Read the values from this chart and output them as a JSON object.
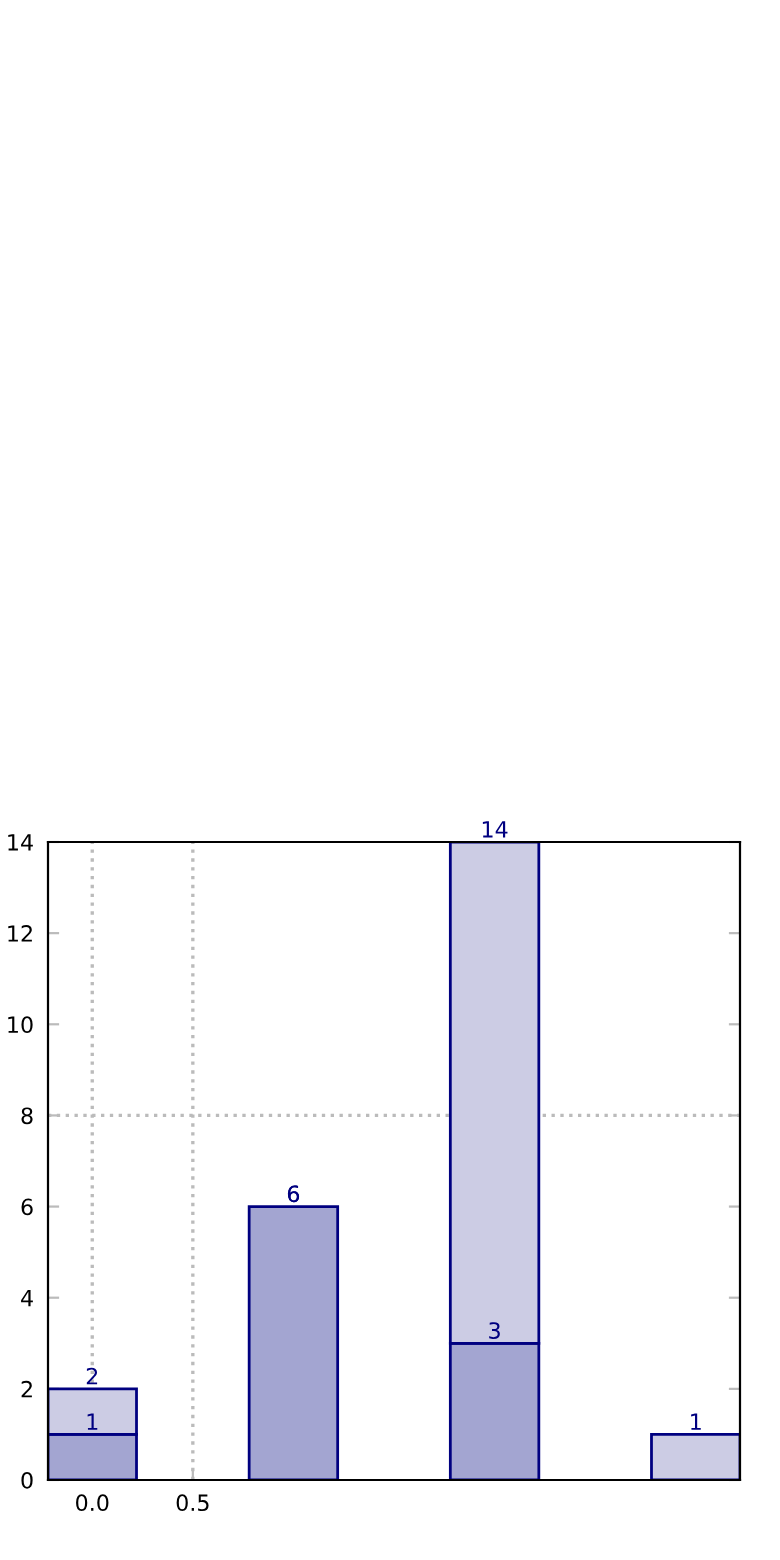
{
  "chart_data": {
    "type": "bar",
    "x": [
      0,
      1,
      2,
      3
    ],
    "stacked": true,
    "series": [
      {
        "color": "#a3a5d1",
        "values": [
          1,
          6,
          3,
          null
        ],
        "value_labels": [
          "1",
          "6",
          "3",
          null
        ]
      },
      {
        "color": "#cccce4",
        "values": [
          1,
          null,
          11,
          1
        ]
      }
    ],
    "totals": [
      "2",
      "6",
      "14",
      "1"
    ],
    "xlim": [
      -0.22,
      3.22
    ],
    "xticks": [
      {
        "value": 0.0,
        "label": "0.0"
      },
      0.5
    ],
    "ylim": [
      0,
      14
    ],
    "yticks": [
      0,
      2,
      4,
      6,
      8,
      10,
      12,
      14
    ],
    "grid": "x",
    "ref_lines": [
      {
        "axis": "y",
        "value": 8,
        "color": "#bbbbbb",
        "line_style": "dotted"
      }
    ]
  }
}
